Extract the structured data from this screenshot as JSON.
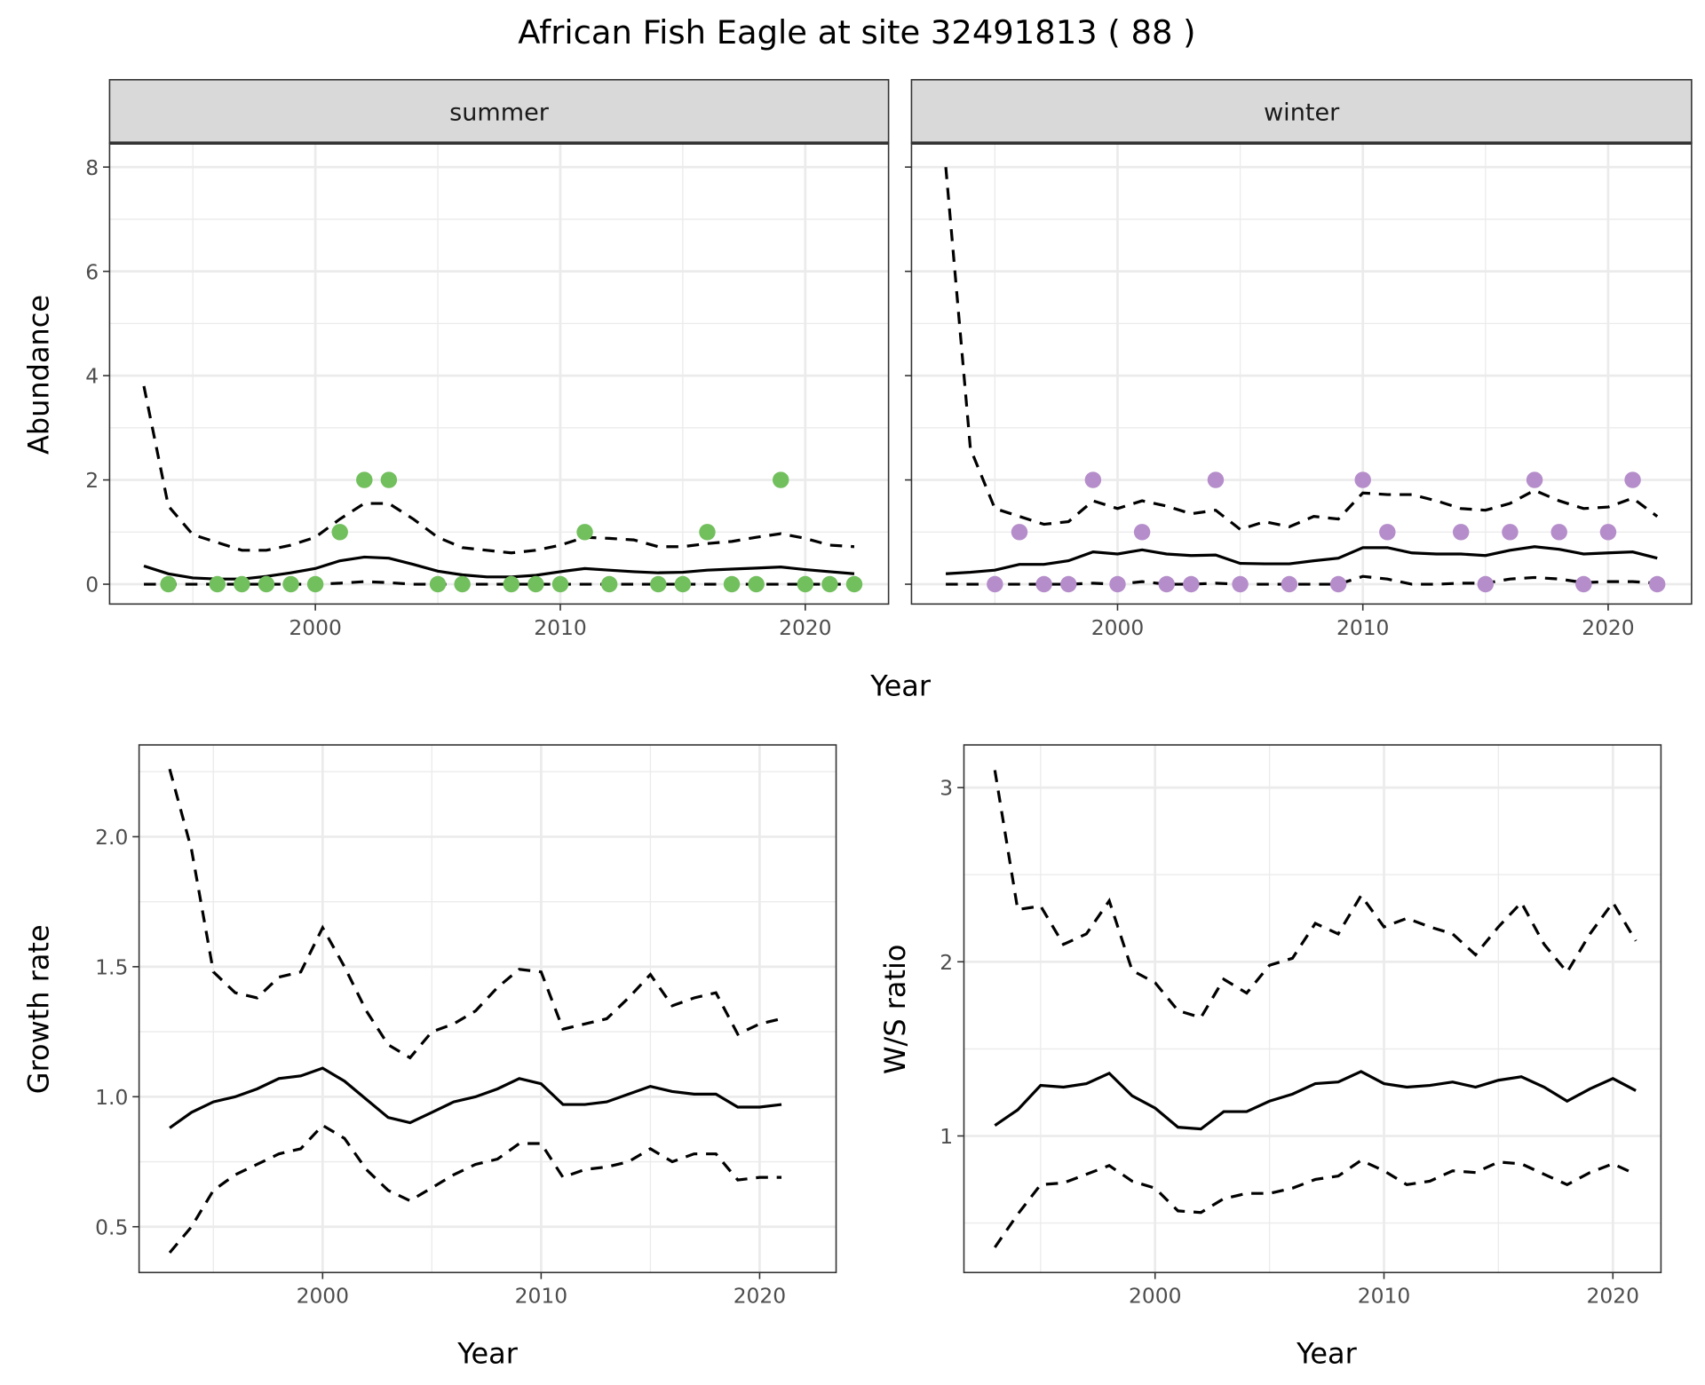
{
  "title": "African Fish Eagle at site 32491813 ( 88 )",
  "colors": {
    "summer": "#72bf5d",
    "winter": "#b58dca",
    "line": "#000000",
    "strip": "#d9d9d9",
    "grid": "#ebebeb"
  },
  "chart_data": [
    {
      "id": "summer",
      "type": "line",
      "strip": "summer",
      "xlabel": "Year",
      "ylabel": "Abundance",
      "xlim": [
        1991.6,
        2023.4
      ],
      "ylim": [
        -0.38,
        8.46
      ],
      "xticks": [
        2000,
        2010,
        2020
      ],
      "yticks": [
        0,
        2,
        4,
        6,
        8
      ],
      "years": [
        1993,
        1994,
        1995,
        1996,
        1997,
        1998,
        1999,
        2000,
        2001,
        2002,
        2003,
        2004,
        2005,
        2006,
        2007,
        2008,
        2009,
        2010,
        2011,
        2012,
        2013,
        2014,
        2015,
        2016,
        2017,
        2018,
        2019,
        2020,
        2021,
        2022
      ],
      "mean": [
        0.35,
        0.2,
        0.12,
        0.1,
        0.1,
        0.15,
        0.22,
        0.3,
        0.45,
        0.52,
        0.5,
        0.38,
        0.25,
        0.18,
        0.14,
        0.14,
        0.17,
        0.24,
        0.3,
        0.27,
        0.24,
        0.22,
        0.23,
        0.27,
        0.29,
        0.31,
        0.33,
        0.28,
        0.24,
        0.2
      ],
      "upper": [
        3.8,
        1.5,
        0.95,
        0.8,
        0.65,
        0.65,
        0.75,
        0.9,
        1.25,
        1.55,
        1.55,
        1.25,
        0.9,
        0.7,
        0.65,
        0.6,
        0.65,
        0.75,
        0.9,
        0.88,
        0.85,
        0.72,
        0.72,
        0.78,
        0.82,
        0.9,
        0.97,
        0.88,
        0.75,
        0.72
      ],
      "lower": [
        0,
        0,
        0,
        0,
        0,
        0,
        0,
        0,
        0.02,
        0.05,
        0.03,
        0,
        0,
        0,
        0,
        0,
        0,
        0,
        0,
        0,
        0,
        0,
        0,
        0,
        0,
        0,
        0,
        0,
        0,
        0
      ],
      "points": {
        "x": [
          1994,
          1996,
          1997,
          1998,
          1999,
          2000,
          2001,
          2002,
          2003,
          2005,
          2006,
          2008,
          2009,
          2010,
          2011,
          2012,
          2014,
          2015,
          2016,
          2017,
          2018,
          2019,
          2020,
          2021,
          2022
        ],
        "y": [
          0,
          0,
          0,
          0,
          0,
          0,
          1,
          2,
          2,
          0,
          0,
          0,
          0,
          0,
          1,
          0,
          0,
          0,
          1,
          0,
          0,
          2,
          0,
          0,
          0
        ]
      }
    },
    {
      "id": "winter",
      "type": "line",
      "strip": "winter",
      "xlabel": "Year",
      "ylabel": "Abundance",
      "xlim": [
        1991.6,
        2023.4
      ],
      "ylim": [
        -0.38,
        8.46
      ],
      "xticks": [
        2000,
        2010,
        2020
      ],
      "yticks": [
        0,
        2,
        4,
        6,
        8
      ],
      "years": [
        1993,
        1994,
        1995,
        1996,
        1997,
        1998,
        1999,
        2000,
        2001,
        2002,
        2003,
        2004,
        2005,
        2006,
        2007,
        2008,
        2009,
        2010,
        2011,
        2012,
        2013,
        2014,
        2015,
        2016,
        2017,
        2018,
        2019,
        2020,
        2021,
        2022
      ],
      "mean": [
        0.2,
        0.23,
        0.27,
        0.38,
        0.38,
        0.45,
        0.62,
        0.58,
        0.66,
        0.58,
        0.55,
        0.56,
        0.4,
        0.39,
        0.39,
        0.45,
        0.5,
        0.7,
        0.7,
        0.6,
        0.58,
        0.58,
        0.55,
        0.65,
        0.72,
        0.67,
        0.58,
        0.6,
        0.62,
        0.5
      ],
      "upper": [
        8.0,
        2.6,
        1.45,
        1.3,
        1.15,
        1.2,
        1.6,
        1.45,
        1.6,
        1.5,
        1.35,
        1.42,
        1.05,
        1.2,
        1.1,
        1.3,
        1.25,
        1.75,
        1.72,
        1.72,
        1.6,
        1.45,
        1.42,
        1.55,
        1.8,
        1.6,
        1.45,
        1.48,
        1.65,
        1.3
      ],
      "lower": [
        0,
        0,
        0,
        0,
        0,
        0,
        0.02,
        0,
        0.05,
        0,
        0,
        0.02,
        0,
        0,
        0,
        0,
        0,
        0.15,
        0.1,
        0,
        0,
        0.02,
        0.02,
        0.1,
        0.13,
        0.1,
        0.03,
        0.05,
        0.05,
        0.02
      ],
      "points": {
        "x": [
          1995,
          1996,
          1997,
          1998,
          1999,
          2000,
          2001,
          2002,
          2003,
          2004,
          2005,
          2007,
          2009,
          2010,
          2011,
          2014,
          2015,
          2016,
          2017,
          2018,
          2019,
          2020,
          2021,
          2022
        ],
        "y": [
          0,
          1,
          0,
          0,
          2,
          0,
          1,
          0,
          0,
          2,
          0,
          0,
          0,
          2,
          1,
          1,
          0,
          1,
          2,
          1,
          0,
          1,
          2,
          0
        ]
      }
    },
    {
      "id": "growth",
      "type": "line",
      "xlabel": "Year",
      "ylabel": "Growth rate",
      "xlim": [
        1991.6,
        2023.5
      ],
      "ylim": [
        0.324,
        2.353
      ],
      "xticks": [
        2000,
        2010,
        2020
      ],
      "yticks": [
        0.5,
        1.0,
        1.5,
        2.0
      ],
      "ytick_labels": [
        "0.5",
        "1.0",
        "1.5",
        "2.0"
      ],
      "years": [
        1993,
        1994,
        1995,
        1996,
        1997,
        1998,
        1999,
        2000,
        2001,
        2002,
        2003,
        2004,
        2005,
        2006,
        2007,
        2008,
        2009,
        2010,
        2011,
        2012,
        2013,
        2014,
        2015,
        2016,
        2017,
        2018,
        2019,
        2020,
        2021
      ],
      "mean": [
        0.88,
        0.94,
        0.98,
        1.0,
        1.03,
        1.07,
        1.08,
        1.11,
        1.06,
        0.99,
        0.92,
        0.9,
        0.94,
        0.98,
        1.0,
        1.03,
        1.07,
        1.05,
        0.97,
        0.97,
        0.98,
        1.01,
        1.04,
        1.02,
        1.01,
        1.01,
        0.96,
        0.96,
        0.97
      ],
      "upper": [
        2.26,
        1.95,
        1.48,
        1.4,
        1.38,
        1.46,
        1.48,
        1.65,
        1.5,
        1.33,
        1.2,
        1.15,
        1.25,
        1.28,
        1.33,
        1.42,
        1.49,
        1.48,
        1.26,
        1.28,
        1.3,
        1.38,
        1.47,
        1.35,
        1.38,
        1.4,
        1.24,
        1.28,
        1.3
      ],
      "lower": [
        0.4,
        0.5,
        0.64,
        0.7,
        0.74,
        0.78,
        0.8,
        0.89,
        0.84,
        0.72,
        0.64,
        0.6,
        0.65,
        0.7,
        0.74,
        0.76,
        0.82,
        0.82,
        0.69,
        0.72,
        0.73,
        0.75,
        0.8,
        0.75,
        0.78,
        0.78,
        0.68,
        0.69,
        0.69
      ]
    },
    {
      "id": "ratio",
      "type": "line",
      "xlabel": "Year",
      "ylabel": "W/S ratio",
      "xlim": [
        1991.65,
        2022.1
      ],
      "ylim": [
        0.216,
        3.245
      ],
      "xticks": [
        2000,
        2010,
        2020
      ],
      "yticks": [
        1,
        2,
        3
      ],
      "years": [
        1993,
        1994,
        1995,
        1996,
        1997,
        1998,
        1999,
        2000,
        2001,
        2002,
        2003,
        2004,
        2005,
        2006,
        2007,
        2008,
        2009,
        2010,
        2011,
        2012,
        2013,
        2014,
        2015,
        2016,
        2017,
        2018,
        2019,
        2020,
        2021
      ],
      "mean": [
        1.06,
        1.15,
        1.29,
        1.28,
        1.3,
        1.36,
        1.23,
        1.16,
        1.05,
        1.04,
        1.14,
        1.14,
        1.2,
        1.24,
        1.3,
        1.31,
        1.37,
        1.3,
        1.28,
        1.29,
        1.31,
        1.28,
        1.32,
        1.34,
        1.28,
        1.2,
        1.27,
        1.33,
        1.26
      ],
      "upper": [
        3.1,
        2.3,
        2.32,
        2.1,
        2.16,
        2.35,
        1.95,
        1.88,
        1.72,
        1.68,
        1.9,
        1.82,
        1.98,
        2.02,
        2.22,
        2.16,
        2.38,
        2.2,
        2.25,
        2.2,
        2.16,
        2.04,
        2.2,
        2.34,
        2.1,
        1.94,
        2.16,
        2.34,
        2.12
      ],
      "lower": [
        0.36,
        0.55,
        0.72,
        0.73,
        0.78,
        0.83,
        0.74,
        0.7,
        0.57,
        0.56,
        0.64,
        0.67,
        0.67,
        0.7,
        0.75,
        0.77,
        0.86,
        0.8,
        0.72,
        0.74,
        0.8,
        0.79,
        0.85,
        0.84,
        0.78,
        0.72,
        0.79,
        0.84,
        0.78
      ]
    }
  ]
}
